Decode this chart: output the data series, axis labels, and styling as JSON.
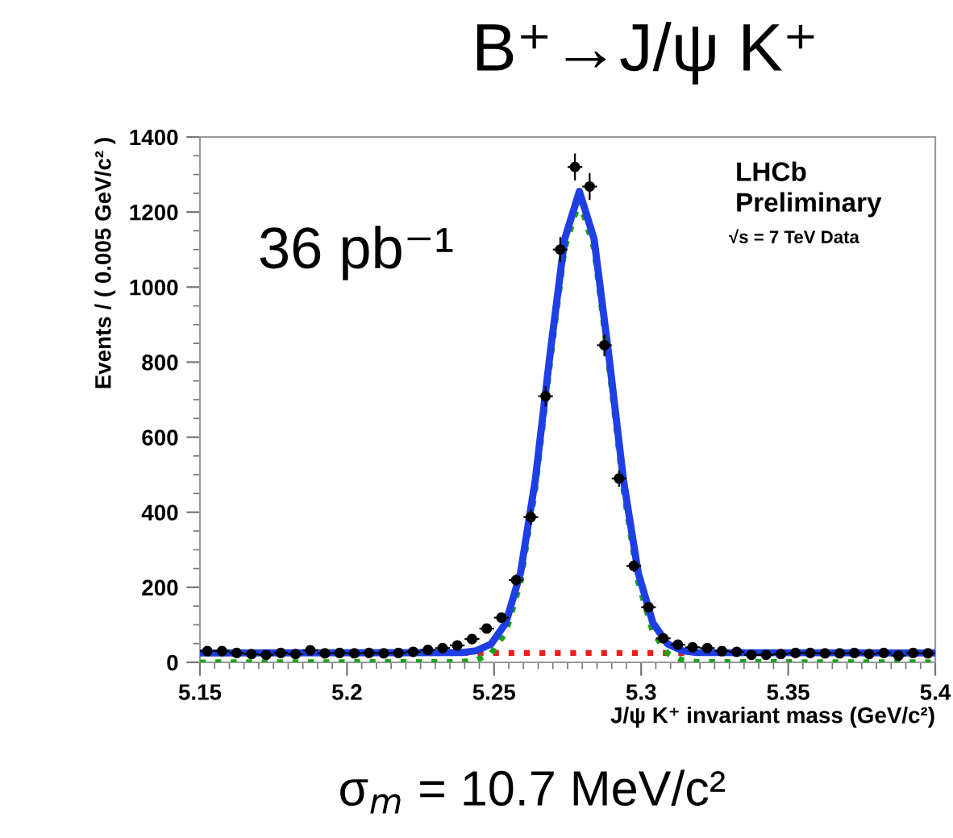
{
  "chart_data": {
    "type": "scatter",
    "title": "B⁺→J/ψ K⁺",
    "xlabel": "J/ψ K⁺ invariant mass (GeV/c²)",
    "ylabel": "Events / ( 0.005 GeV/c² )",
    "annotations": [
      "36 pb⁻¹",
      "LHCb",
      "Preliminary",
      "√s = 7 TeV Data",
      "σ$_{m}$ = 10.7 MeV/c²"
    ],
    "xlim": [
      5.15,
      5.4
    ],
    "xticks": [
      5.15,
      5.2,
      5.25,
      5.3,
      5.35,
      5.4
    ],
    "ylim": [
      0,
      1400
    ],
    "yticks": [
      0,
      200,
      400,
      600,
      800,
      1000,
      1200,
      1400
    ],
    "grid": false,
    "legend": false,
    "series": [
      {
        "type": "line",
        "color": "#e8201c",
        "line_style": "dotted",
        "marker": "none",
        "x": [
          5.15,
          5.4
        ],
        "values": [
          25,
          25
        ]
      },
      {
        "type": "line",
        "color": "#1aa21a",
        "line_style": "dotted",
        "marker": "none",
        "x": [
          5.15,
          5.239,
          5.244,
          5.249,
          5.254,
          5.259,
          5.264,
          5.269,
          5.274,
          5.279,
          5.284,
          5.289,
          5.294,
          5.299,
          5.304,
          5.309,
          5.314,
          5.319,
          5.4
        ],
        "values": [
          0,
          1,
          6,
          24,
          80,
          214,
          460,
          794,
          1103,
          1230,
          1103,
          794,
          460,
          214,
          80,
          24,
          6,
          1,
          0
        ]
      },
      {
        "type": "line",
        "color": "#1f3fe6",
        "line_style": "solid",
        "marker": "none",
        "x": [
          5.15,
          5.239,
          5.244,
          5.249,
          5.254,
          5.259,
          5.264,
          5.269,
          5.274,
          5.279,
          5.284,
          5.289,
          5.294,
          5.299,
          5.304,
          5.309,
          5.314,
          5.319,
          5.4
        ],
        "values": [
          25,
          26,
          31,
          49,
          105,
          239,
          485,
          819,
          1128,
          1255,
          1128,
          819,
          485,
          239,
          105,
          49,
          31,
          26,
          25
        ]
      },
      {
        "type": "scatter",
        "color": "#000000",
        "marker": "circle",
        "x": [
          5.1525,
          5.1575,
          5.1625,
          5.1675,
          5.1725,
          5.1775,
          5.1825,
          5.1875,
          5.1925,
          5.1975,
          5.2025,
          5.2075,
          5.2125,
          5.2175,
          5.2225,
          5.2275,
          5.2325,
          5.2375,
          5.2425,
          5.2475,
          5.2525,
          5.2575,
          5.2625,
          5.2675,
          5.2725,
          5.2775,
          5.2825,
          5.2875,
          5.2925,
          5.2975,
          5.3025,
          5.3075,
          5.3125,
          5.3175,
          5.3225,
          5.3275,
          5.3325,
          5.3375,
          5.3425,
          5.3475,
          5.3525,
          5.3575,
          5.3625,
          5.3675,
          5.3725,
          5.3775,
          5.3825,
          5.3875,
          5.3925,
          5.3975
        ],
        "values": [
          30,
          30,
          25,
          22,
          20,
          25,
          22,
          32,
          24,
          25,
          24,
          25,
          24,
          25,
          28,
          33,
          38,
          45,
          62,
          90,
          119,
          219,
          387,
          709,
          1100,
          1320,
          1268,
          845,
          490,
          257,
          147,
          64,
          47,
          40,
          38,
          30,
          28,
          20,
          20,
          22,
          25,
          25,
          24,
          24,
          25,
          22,
          25,
          18,
          25,
          24
        ],
        "errors": [
          5,
          5,
          5,
          5,
          4,
          5,
          5,
          6,
          5,
          5,
          5,
          5,
          5,
          5,
          5,
          6,
          6,
          7,
          8,
          9,
          11,
          15,
          20,
          27,
          33,
          36,
          36,
          29,
          22,
          16,
          12,
          8,
          7,
          6,
          6,
          5,
          5,
          4,
          4,
          5,
          5,
          5,
          5,
          5,
          5,
          5,
          5,
          4,
          5,
          5
        ],
        "xerrors": [
          0.0025,
          0.0025,
          0.0025,
          0.0025,
          0.0025,
          0.0025,
          0.0025,
          0.0025,
          0.0025,
          0.0025,
          0.0025,
          0.0025,
          0.0025,
          0.0025,
          0.0025,
          0.0025,
          0.0025,
          0.0025,
          0.0025,
          0.0025,
          0.0025,
          0.0025,
          0.0025,
          0.0025,
          0.0025,
          0.0025,
          0.0025,
          0.0025,
          0.0025,
          0.0025,
          0.0025,
          0.0025,
          0.0025,
          0.0025,
          0.0025,
          0.0025,
          0.0025,
          0.0025,
          0.0025,
          0.0025,
          0.0025,
          0.0025,
          0.0025,
          0.0025,
          0.0025,
          0.0025,
          0.0025,
          0.0025,
          0.0025,
          0.0025
        ]
      }
    ]
  }
}
